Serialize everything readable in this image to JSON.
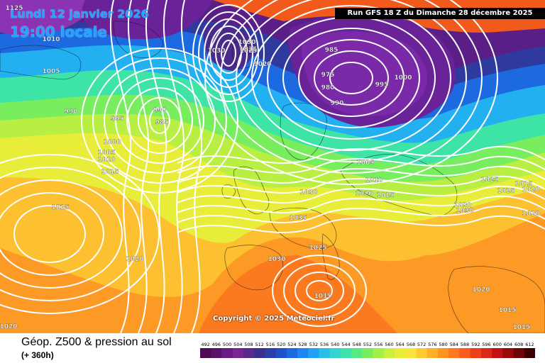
{
  "header": {
    "date": "Lundi 12 janvier 2026",
    "time": "19:00 locale",
    "run": "Run GFS 18 Z du Dimanche 28 décembre 2025"
  },
  "footer": {
    "title": "Géop. Z500 & pression au sol",
    "lead": "(+ 360h)",
    "copyright": "Copyright © 2025 Meteociel.fr"
  },
  "legend": {
    "values": [
      "492",
      "496",
      "500",
      "504",
      "508",
      "512",
      "516",
      "520",
      "524",
      "528",
      "532",
      "536",
      "540",
      "544",
      "548",
      "552",
      "556",
      "560",
      "564",
      "568",
      "572",
      "576",
      "580",
      "584",
      "588",
      "592",
      "596",
      "600",
      "604",
      "608",
      "612"
    ],
    "colors": [
      "#4b0c52",
      "#5a1268",
      "#6a1a82",
      "#7a2496",
      "#5a2a8a",
      "#3a2f8c",
      "#2a3fa8",
      "#1f52c6",
      "#1c6ae0",
      "#1d86f0",
      "#22a2f4",
      "#2abfe8",
      "#33d6cf",
      "#3fe3aa",
      "#57ea84",
      "#79ee5c",
      "#a0f046",
      "#c8f03c",
      "#e6ee3a",
      "#f8e43a",
      "#fccb30",
      "#fdb028",
      "#fe9422",
      "#fd781e",
      "#f95c1c",
      "#ec401a",
      "#d92816",
      "#c01212",
      "#9a0a0a",
      "#6e0404",
      "#3a0000"
    ]
  },
  "map": {
    "isobar_labels": [
      "1125",
      "1010",
      "1005",
      "990",
      "995",
      "1000",
      "1005",
      "1010",
      "1015",
      "1025",
      "1020",
      "1020",
      "990",
      "985",
      "1030",
      "1025",
      "1015",
      "1025",
      "1020",
      "975",
      "985",
      "980",
      "990",
      "995",
      "1000",
      "1005",
      "1010",
      "1015",
      "1020",
      "1030",
      "1035",
      "1025",
      "1030",
      "1015",
      "1025",
      "1025",
      "1020",
      "1030",
      "1020",
      "1020",
      "1015",
      "1015",
      "1030",
      "1030"
    ]
  }
}
